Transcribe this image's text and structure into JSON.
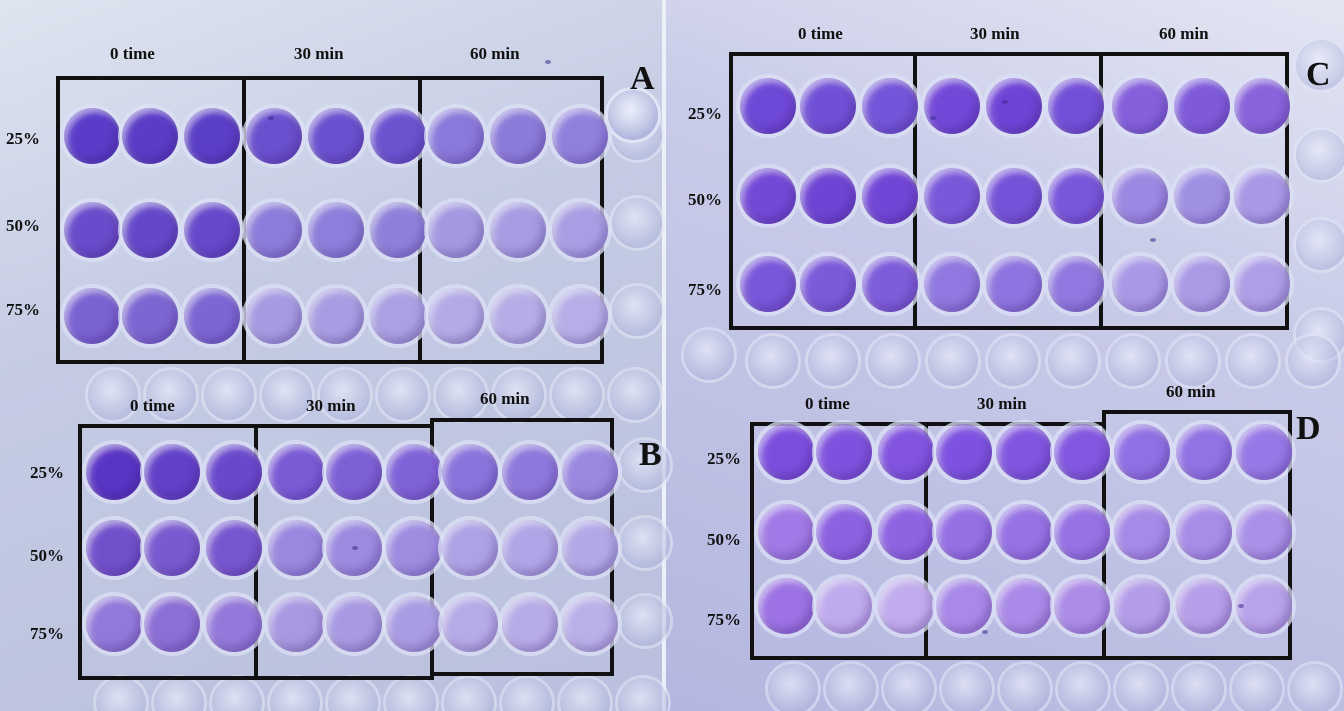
{
  "figure": {
    "panels": [
      {
        "letter": "A",
        "time_labels": [
          "0 time",
          "30 min",
          "60 min"
        ],
        "concentration_labels": [
          "25%",
          "50%",
          "75%"
        ],
        "well_colors": [
          [
            "#5a3cc8",
            "#5a3cc6",
            "#5b3ec6",
            "#6a4fce",
            "#6a50ce",
            "#6b52cf",
            "#8a78da",
            "#8b7ad9",
            "#9080dc"
          ],
          [
            "#6a4bcb",
            "#6448c9",
            "#6648ca",
            "#8b7cd9",
            "#8c7eda",
            "#8e80da",
            "#a398e1",
            "#a69ce2",
            "#a89ee3"
          ],
          [
            "#7a62d2",
            "#7d66d2",
            "#7c66d3",
            "#a69be2",
            "#a89de2",
            "#aaa0e3",
            "#b3abe6",
            "#b5ade6",
            "#b6afe7"
          ]
        ]
      },
      {
        "letter": "B",
        "time_labels": [
          "0 time",
          "30 min",
          "60 min"
        ],
        "concentration_labels": [
          "25%",
          "50%",
          "75%"
        ],
        "well_colors": [
          [
            "#5a34c4",
            "#6240c8",
            "#6a48cc",
            "#7b5ad6",
            "#7e60d6",
            "#8062d8",
            "#8a74dc",
            "#8e78dc",
            "#9a88e0"
          ],
          [
            "#7250cc",
            "#7a5ad0",
            "#7856d0",
            "#9a88e0",
            "#9c8ae0",
            "#9e8ce1",
            "#aea2e6",
            "#b0a5e6",
            "#b2a8e7"
          ],
          [
            "#9278da",
            "#8c6ed6",
            "#9478da",
            "#a898e2",
            "#a899e2",
            "#aa9ce3",
            "#b6aae7",
            "#b8ace8",
            "#bab0e8"
          ]
        ]
      },
      {
        "letter": "C",
        "time_labels": [
          "0 time",
          "30 min",
          "60 min"
        ],
        "concentration_labels": [
          "25%",
          "50%",
          "75%"
        ],
        "well_colors": [
          [
            "#6e48d6",
            "#7150d6",
            "#7454d8",
            "#7248d8",
            "#6e44d6",
            "#7450d8",
            "#8460dc",
            "#7e5ada",
            "#8864dc"
          ],
          [
            "#7248d6",
            "#6e44d4",
            "#7046d6",
            "#7a58da",
            "#7652d8",
            "#7a56da",
            "#9c88e2",
            "#a090e4",
            "#a898e6"
          ],
          [
            "#7a56da",
            "#7c5ada",
            "#7e5cda",
            "#9078e0",
            "#8e74e0",
            "#9078e0",
            "#a898e6",
            "#aa9ae6",
            "#ae9ee7"
          ]
        ]
      },
      {
        "letter": "D",
        "time_labels": [
          "0 time",
          "30 min",
          "60 min"
        ],
        "concentration_labels": [
          "25%",
          "50%",
          "75%"
        ],
        "well_colors": [
          [
            "#7c4ede",
            "#7e52de",
            "#8254e0",
            "#7d52e0",
            "#8056e0",
            "#8258e0",
            "#9070e4",
            "#9272e4",
            "#9878e6"
          ],
          [
            "#a07ae6",
            "#8c62e2",
            "#8e64e2",
            "#9470e4",
            "#9672e4",
            "#9672e4",
            "#a68ae8",
            "#a88ce8",
            "#aa90e8"
          ],
          [
            "#9c72e4",
            "#c0aaee",
            "#c2acee",
            "#a888e8",
            "#aa8ae8",
            "#ac8ce8",
            "#b49ce9",
            "#b69ee9",
            "#b8a2ea"
          ]
        ]
      }
    ]
  }
}
